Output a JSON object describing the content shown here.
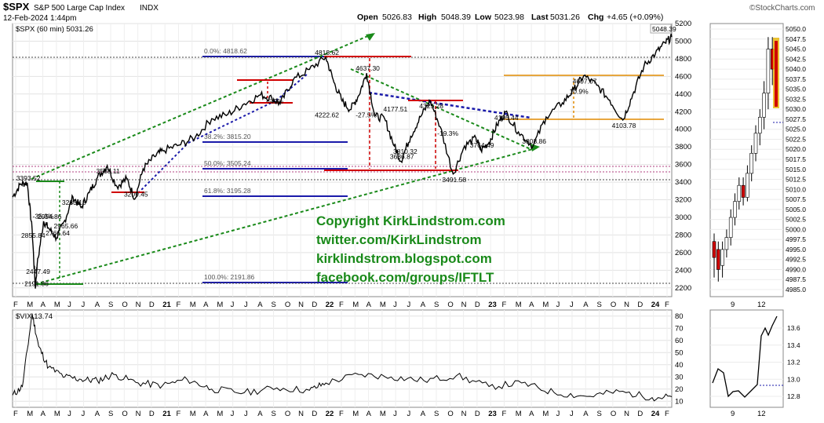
{
  "header": {
    "symbol": "$SPX",
    "name": "S&P 500 Large Cap Index",
    "exchange": "INDX",
    "datetime": "12-Feb-2024 1:44pm",
    "open_label": "Open",
    "open": "5026.83",
    "high_label": "High",
    "high": "5048.39",
    "low_label": "Low",
    "low": "5023.98",
    "last_label": "Last",
    "last": "5031.26",
    "chg_label": "Chg",
    "chg": "+4.65 (+0.09%)",
    "brand": "©StockCharts.com"
  },
  "main_legend": "$SPX (60 min) 5031.26",
  "last_value_box": "5048.39",
  "vix_legend": "$VIX 13.74",
  "copyright_lines": [
    "Copyright KirkLindstrom.com",
    "twitter.com/KirkLindstrom",
    "kirklindstrom.blogspot.com",
    "facebook.com/groups/IFTLT"
  ],
  "fib_labels": [
    "0.0%: 4818.62",
    "38.2%: 3815.20",
    "50.0%: 3505.24",
    "61.8%: 3195.28",
    "100.0%: 2191.86"
  ],
  "price_annotations": [
    {
      "text": "3393.52",
      "x": 2020.17,
      "y": 3393.52
    },
    {
      "text": "2855.84",
      "x": 2020.2,
      "y": 2855.84
    },
    {
      "text": "-35.3%",
      "x": 2020.27,
      "y": 2960
    },
    {
      "text": "2447.49",
      "x": 2020.23,
      "y": 2447.49
    },
    {
      "text": "2191.86",
      "x": 2020.22,
      "y": 2191.86
    },
    {
      "text": "3233.13",
      "x": 2020.45,
      "y": 3233.13
    },
    {
      "text": "2954.86",
      "x": 2020.3,
      "y": 2954.86
    },
    {
      "text": "2965.66",
      "x": 2020.4,
      "y": 2965.66
    },
    {
      "text": "2766.64",
      "x": 2020.35,
      "y": 2766.64
    },
    {
      "text": "3588.11",
      "x": 2020.66,
      "y": 3588.11
    },
    {
      "text": "3209.45",
      "x": 2020.83,
      "y": 3209.45
    },
    {
      "text": "-5.9%",
      "x": 2021.7,
      "y": 4380
    },
    {
      "text": "4818.62",
      "x": 2022.0,
      "y": 4818.62
    },
    {
      "text": "4222.62",
      "x": 2022.0,
      "y": 4222.62
    },
    {
      "text": "4637.30",
      "x": 2022.25,
      "y": 4637.3
    },
    {
      "text": "-27.5%",
      "x": 2022.25,
      "y": 4225
    },
    {
      "text": "4177.51",
      "x": 2022.42,
      "y": 4177.51
    },
    {
      "text": "3810.32",
      "x": 2022.48,
      "y": 3810.32
    },
    {
      "text": "3636.87",
      "x": 2022.46,
      "y": 3636.87
    },
    {
      "text": "4325.28",
      "x": 2022.64,
      "y": 4325.28
    },
    {
      "text": "-19.3%",
      "x": 2022.75,
      "y": 3900
    },
    {
      "text": "3491.58",
      "x": 2022.78,
      "y": 3491.58
    },
    {
      "text": "3764.49",
      "x": 2022.95,
      "y": 3764.49
    },
    {
      "text": "4195.44",
      "x": 2023.1,
      "y": 4195.44
    },
    {
      "text": "3808.86",
      "x": 2023.27,
      "y": 3808.86
    },
    {
      "text": "4607.07",
      "x": 2023.58,
      "y": 4607.07
    },
    {
      "text": "10.9%",
      "x": 2023.56,
      "y": 4375
    },
    {
      "text": "4103.78",
      "x": 2023.82,
      "y": 4103.78
    }
  ],
  "main_x_labels": [
    "F",
    "M",
    "A",
    "M",
    "J",
    "J",
    "A",
    "S",
    "O",
    "N",
    "D",
    "21",
    "F",
    "M",
    "A",
    "M",
    "J",
    "J",
    "A",
    "S",
    "O",
    "N",
    "D",
    "22",
    "F",
    "M",
    "A",
    "M",
    "J",
    "J",
    "A",
    "S",
    "O",
    "N",
    "D",
    "23",
    "F",
    "M",
    "A",
    "M",
    "J",
    "J",
    "A",
    "S",
    "O",
    "N",
    "D",
    "24",
    "F"
  ],
  "main_y_labels": [
    "2200",
    "2400",
    "2600",
    "2800",
    "3000",
    "3200",
    "3400",
    "3600",
    "3800",
    "4000",
    "4200",
    "4400",
    "4600",
    "4800",
    "5000",
    "5200"
  ],
  "vix_y_labels": [
    "10",
    "20",
    "30",
    "40",
    "50",
    "60",
    "70",
    "80"
  ],
  "side_y_labels": [
    "4985.0",
    "4987.5",
    "4990.0",
    "4992.5",
    "4995.0",
    "4997.5",
    "5000.0",
    "5002.5",
    "5005.0",
    "5007.5",
    "5010.0",
    "5012.5",
    "5015.0",
    "5017.5",
    "5020.0",
    "5022.5",
    "5025.0",
    "5027.5",
    "5030.0",
    "5032.5",
    "5035.0",
    "5037.5",
    "5040.0",
    "5042.5",
    "5045.0",
    "5047.5",
    "5050.0"
  ],
  "side_x_labels": [
    "9",
    "12"
  ],
  "side_vix_y_labels": [
    "12.8",
    "13.0",
    "13.2",
    "13.4",
    "13.6"
  ],
  "colors": {
    "price": "#000000",
    "green": "#1a8a1a",
    "blue": "#1a1aaa",
    "red": "#d00000",
    "orange": "#e08a00",
    "grid": "#d8d8d8"
  },
  "chart_data": [
    {
      "type": "line",
      "title": "$SPX (60 min) 5031.26",
      "xlabel": "",
      "ylabel": "",
      "x_range": [
        2020.08,
        2024.12
      ],
      "ylim": [
        2100,
        5200
      ],
      "grid": true,
      "series": [
        {
          "name": "$SPX",
          "x": [
            2020.08,
            2020.13,
            2020.17,
            2020.2,
            2020.22,
            2020.23,
            2020.27,
            2020.3,
            2020.35,
            2020.4,
            2020.45,
            2020.5,
            2020.55,
            2020.6,
            2020.66,
            2020.72,
            2020.78,
            2020.83,
            2020.88,
            2020.95,
            2021.0,
            2021.1,
            2021.2,
            2021.3,
            2021.4,
            2021.5,
            2021.6,
            2021.67,
            2021.72,
            2021.8,
            2021.9,
            2022.0,
            2022.05,
            2022.1,
            2022.15,
            2022.2,
            2022.25,
            2022.3,
            2022.36,
            2022.42,
            2022.46,
            2022.52,
            2022.58,
            2022.64,
            2022.7,
            2022.78,
            2022.85,
            2022.92,
            2022.95,
            2023.0,
            2023.05,
            2023.1,
            2023.18,
            2023.27,
            2023.35,
            2023.45,
            2023.52,
            2023.58,
            2023.66,
            2023.74,
            2023.82,
            2023.88,
            2023.95,
            2024.02,
            2024.08,
            2024.12
          ],
          "values": [
            3230,
            3380,
            3393,
            2855,
            2192,
            2447,
            2955,
            2880,
            2766,
            2966,
            3233,
            3110,
            3280,
            3450,
            3588,
            3350,
            3440,
            3209,
            3550,
            3690,
            3756,
            3820,
            3910,
            4120,
            4170,
            4290,
            4390,
            4350,
            4290,
            4560,
            4680,
            4818,
            4530,
            4320,
            4223,
            4380,
            4637,
            4150,
            4120,
            3810,
            3637,
            3920,
            4140,
            4325,
            4030,
            3492,
            3810,
            3900,
            3764,
            3850,
            4050,
            4195,
            3970,
            3809,
            4140,
            4300,
            4450,
            4607,
            4500,
            4330,
            4104,
            4390,
            4720,
            4860,
            4980,
            5048
          ]
        }
      ]
    },
    {
      "type": "area",
      "title": "$VIX 13.74",
      "ylim": [
        5,
        85
      ],
      "grid": true,
      "series": [
        {
          "name": "$VIX",
          "x": [
            2020.08,
            2020.14,
            2020.2,
            2020.24,
            2020.3,
            2020.4,
            2020.5,
            2020.6,
            2020.7,
            2020.85,
            2021.0,
            2021.15,
            2021.3,
            2021.5,
            2021.7,
            2021.9,
            2022.0,
            2022.2,
            2022.4,
            2022.6,
            2022.8,
            2023.0,
            2023.2,
            2023.4,
            2023.6,
            2023.8,
            2024.0,
            2024.12
          ],
          "values": [
            15,
            22,
            82,
            55,
            38,
            30,
            28,
            27,
            32,
            25,
            23,
            28,
            20,
            17,
            21,
            19,
            25,
            32,
            30,
            27,
            31,
            22,
            25,
            17,
            14,
            18,
            13,
            13.74
          ]
        }
      ]
    }
  ]
}
